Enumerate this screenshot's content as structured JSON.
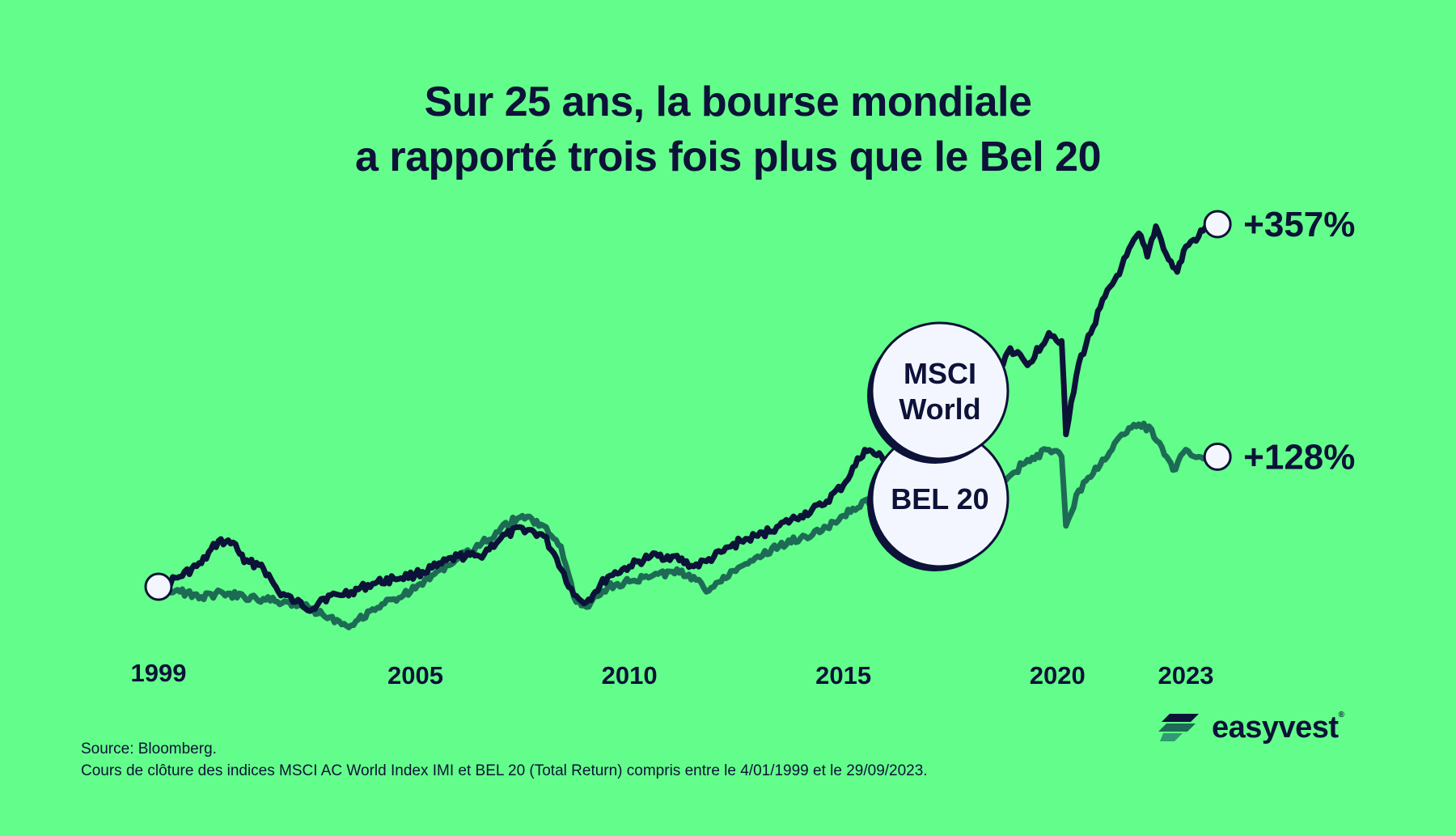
{
  "title": {
    "line1": "Sur 25 ans, la bourse mondiale",
    "line2": "a rapporté trois fois plus que le Bel 20"
  },
  "footer": {
    "source": "Source: Bloomberg.",
    "note": "Cours de clôture des indices MSCI AC World Index IMI et BEL 20 (Total Return) compris entre le 4/01/1999 et le 29/09/2023."
  },
  "brand": {
    "name": "easyvest",
    "mark": "®"
  },
  "colors": {
    "background": "#63fd8b",
    "msci": "#0c1238",
    "bel": "#1d6b55",
    "marker": "#f4f6ff"
  },
  "chart_data": {
    "type": "line",
    "title": "Sur 25 ans, la bourse mondiale a rapporté trois fois plus que le Bel 20",
    "xlabel": "",
    "ylabel": "",
    "x_ticks": [
      "1999",
      "2005",
      "2010",
      "2015",
      "2020",
      "2023"
    ],
    "ylim": [
      -100,
      380
    ],
    "grid": false,
    "legend": "inline bubbles",
    "series": [
      {
        "name": "MSCI World",
        "bubble": [
          "MSCI",
          "World"
        ],
        "end_label": "+357%",
        "x": [
          1999.0,
          1999.5,
          2000.0,
          2000.4,
          2000.8,
          2001.0,
          2001.4,
          2001.8,
          2002.2,
          2002.6,
          2002.8,
          2003.2,
          2003.5,
          2004.0,
          2004.5,
          2005.0,
          2005.5,
          2006.0,
          2006.5,
          2007.0,
          2007.5,
          2008.0,
          2008.3,
          2008.7,
          2009.0,
          2009.2,
          2009.5,
          2010.0,
          2010.5,
          2011.0,
          2011.5,
          2011.8,
          2012.2,
          2012.6,
          2013.0,
          2013.5,
          2014.0,
          2014.5,
          2015.0,
          2015.5,
          2016.0,
          2016.3,
          2016.6,
          2016.9,
          2017.2,
          2017.6,
          2018.0,
          2018.5,
          2018.9,
          2019.3,
          2019.8,
          2020.1,
          2020.2,
          2020.5,
          2021.0,
          2021.5,
          2021.9,
          2022.1,
          2022.3,
          2022.6,
          2022.8,
          2023.0,
          2023.3,
          2023.5,
          2023.74
        ],
        "values": [
          0,
          10,
          23,
          45,
          42,
          24,
          22,
          -5,
          -15,
          -22,
          -12,
          -8,
          -5,
          3,
          8,
          12,
          20,
          30,
          30,
          48,
          58,
          50,
          28,
          -8,
          -15,
          -5,
          10,
          20,
          30,
          30,
          20,
          25,
          35,
          45,
          50,
          60,
          70,
          80,
          100,
          135,
          125,
          103,
          108,
          90,
          118,
          150,
          185,
          205,
          235,
          218,
          250,
          242,
          150,
          220,
          275,
          315,
          348,
          325,
          355,
          322,
          310,
          335,
          345,
          355,
          357
        ]
      },
      {
        "name": "BEL 20",
        "bubble": [
          "BEL 20"
        ],
        "end_label": "+128%",
        "x": [
          1999.0,
          1999.5,
          2000.0,
          2000.5,
          2001.0,
          2001.5,
          2002.0,
          2002.5,
          2003.0,
          2003.5,
          2004.0,
          2004.5,
          2005.0,
          2005.5,
          2006.0,
          2006.5,
          2007.0,
          2007.5,
          2008.0,
          2008.4,
          2008.7,
          2009.0,
          2009.2,
          2009.5,
          2010.0,
          2010.5,
          2011.0,
          2011.5,
          2011.8,
          2012.2,
          2012.6,
          2013.0,
          2013.5,
          2014.0,
          2014.5,
          2015.0,
          2015.5,
          2016.0,
          2016.5,
          2017.0,
          2017.3,
          2017.6,
          2018.0,
          2018.5,
          2018.8,
          2019.3,
          2019.8,
          2020.1,
          2020.2,
          2020.5,
          2021.0,
          2021.5,
          2021.9,
          2022.2,
          2022.5,
          2022.7,
          2023.0,
          2023.3,
          2023.74
        ],
        "values": [
          0,
          -5,
          -10,
          -6,
          -10,
          -13,
          -15,
          -20,
          -30,
          -38,
          -22,
          -12,
          -2,
          15,
          28,
          40,
          58,
          70,
          60,
          40,
          -10,
          -20,
          -8,
          0,
          5,
          10,
          15,
          10,
          -5,
          10,
          20,
          30,
          40,
          48,
          55,
          70,
          85,
          75,
          78,
          90,
          95,
          80,
          100,
          113,
          105,
          125,
          135,
          128,
          60,
          95,
          120,
          150,
          160,
          155,
          130,
          115,
          135,
          128,
          128
        ]
      }
    ]
  }
}
